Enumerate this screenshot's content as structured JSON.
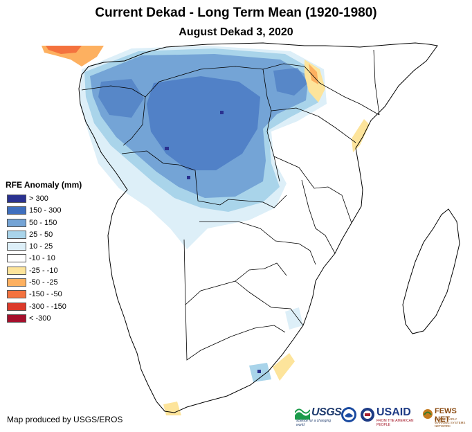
{
  "title": "Current Dekad - Long Term Mean (1920-1980)",
  "subtitle": "August Dekad 3, 2020",
  "legend": {
    "title": "RFE Anomaly (mm)",
    "items": [
      {
        "label": "> 300",
        "color": "#2a3190"
      },
      {
        "label": "150 - 300",
        "color": "#3f6fbe"
      },
      {
        "label": "50 - 150",
        "color": "#74a4d6"
      },
      {
        "label": "25 - 50",
        "color": "#a9d4ea"
      },
      {
        "label": "10 - 25",
        "color": "#ddeff8"
      },
      {
        "label": "-10 - 10",
        "color": "#ffffff"
      },
      {
        "label": "-25 - -10",
        "color": "#fde49b"
      },
      {
        "label": "-50 - -25",
        "color": "#fdb060"
      },
      {
        "label": "-150 - -50",
        "color": "#f4723e"
      },
      {
        "label": "-300 - -150",
        "color": "#dc3a2a"
      },
      {
        "label": "< -300",
        "color": "#a50f2c"
      }
    ]
  },
  "credit": "Map produced by USGS/EROS",
  "logos": {
    "usgs": "USGS",
    "usgs_tagline": "science for a changing world",
    "noaa_icon": "noaa-logo-icon",
    "usaid": "USAID",
    "usaid_tagline": "FROM THE AMERICAN PEOPLE",
    "fews": "FEWS NET",
    "fews_tagline": "FAMINE EARLY WARNING SYSTEMS NETWORK"
  }
}
